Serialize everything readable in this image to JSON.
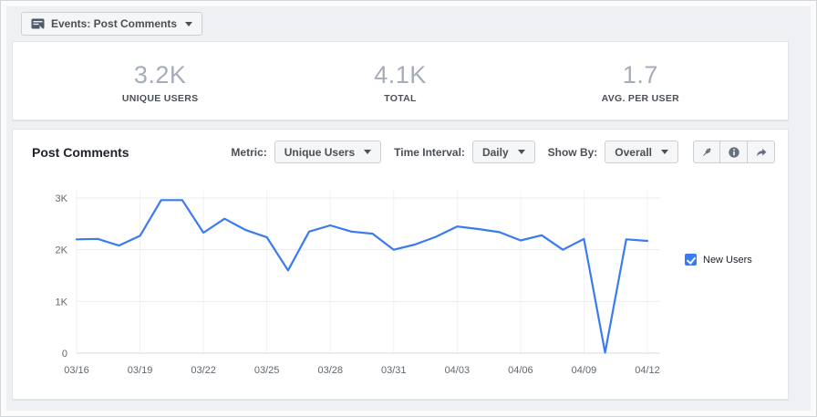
{
  "events_selector": {
    "label": "Events: Post Comments",
    "icon": "events-screen-icon"
  },
  "stats": [
    {
      "value": "3.2K",
      "label": "UNIQUE USERS"
    },
    {
      "value": "4.1K",
      "label": "TOTAL"
    },
    {
      "value": "1.7",
      "label": "AVG. PER USER"
    }
  ],
  "chart_panel": {
    "title": "Post Comments",
    "controls": [
      {
        "label": "Metric:",
        "value": "Unique Users"
      },
      {
        "label": "Time Interval:",
        "value": "Daily"
      },
      {
        "label": "Show By:",
        "value": "Overall"
      }
    ],
    "icon_buttons": [
      "pin",
      "info",
      "share"
    ],
    "legend": {
      "label": "New Users",
      "checked": true
    }
  },
  "colors": {
    "line": "#3b7bf0",
    "grid_h": "#e9ebee",
    "grid_v": "#f1f2f5",
    "axis_zero": "#d8dbe0",
    "axis_text": "#606770"
  },
  "chart_data": {
    "type": "line",
    "x": [
      "03/16",
      "03/17",
      "03/18",
      "03/19",
      "03/20",
      "03/21",
      "03/22",
      "03/23",
      "03/24",
      "03/25",
      "03/26",
      "03/27",
      "03/28",
      "03/29",
      "03/30",
      "03/31",
      "04/01",
      "04/02",
      "04/03",
      "04/04",
      "04/05",
      "04/06",
      "04/07",
      "04/08",
      "04/09",
      "04/10",
      "04/11",
      "04/12"
    ],
    "series": [
      {
        "name": "New Users",
        "color": "#3b7bf0",
        "values": [
          2200,
          2210,
          2080,
          2270,
          2960,
          2960,
          2330,
          2600,
          2380,
          2240,
          1600,
          2350,
          2470,
          2350,
          2310,
          2000,
          2100,
          2250,
          2450,
          2400,
          2340,
          2180,
          2280,
          2000,
          2210,
          10,
          2200,
          2170
        ]
      }
    ],
    "x_tick_labels": [
      "03/16",
      "03/19",
      "03/22",
      "03/25",
      "03/28",
      "03/31",
      "04/03",
      "04/06",
      "04/09",
      "04/12"
    ],
    "x_tick_every": 3,
    "y_ticks": [
      0,
      1000,
      2000,
      3000
    ],
    "y_tick_labels": [
      "0",
      "1K",
      "2K",
      "3K"
    ],
    "ylim": [
      0,
      3150
    ],
    "grid": true,
    "legend_position": "right",
    "title": "Post Comments",
    "xlabel": "",
    "ylabel": ""
  }
}
